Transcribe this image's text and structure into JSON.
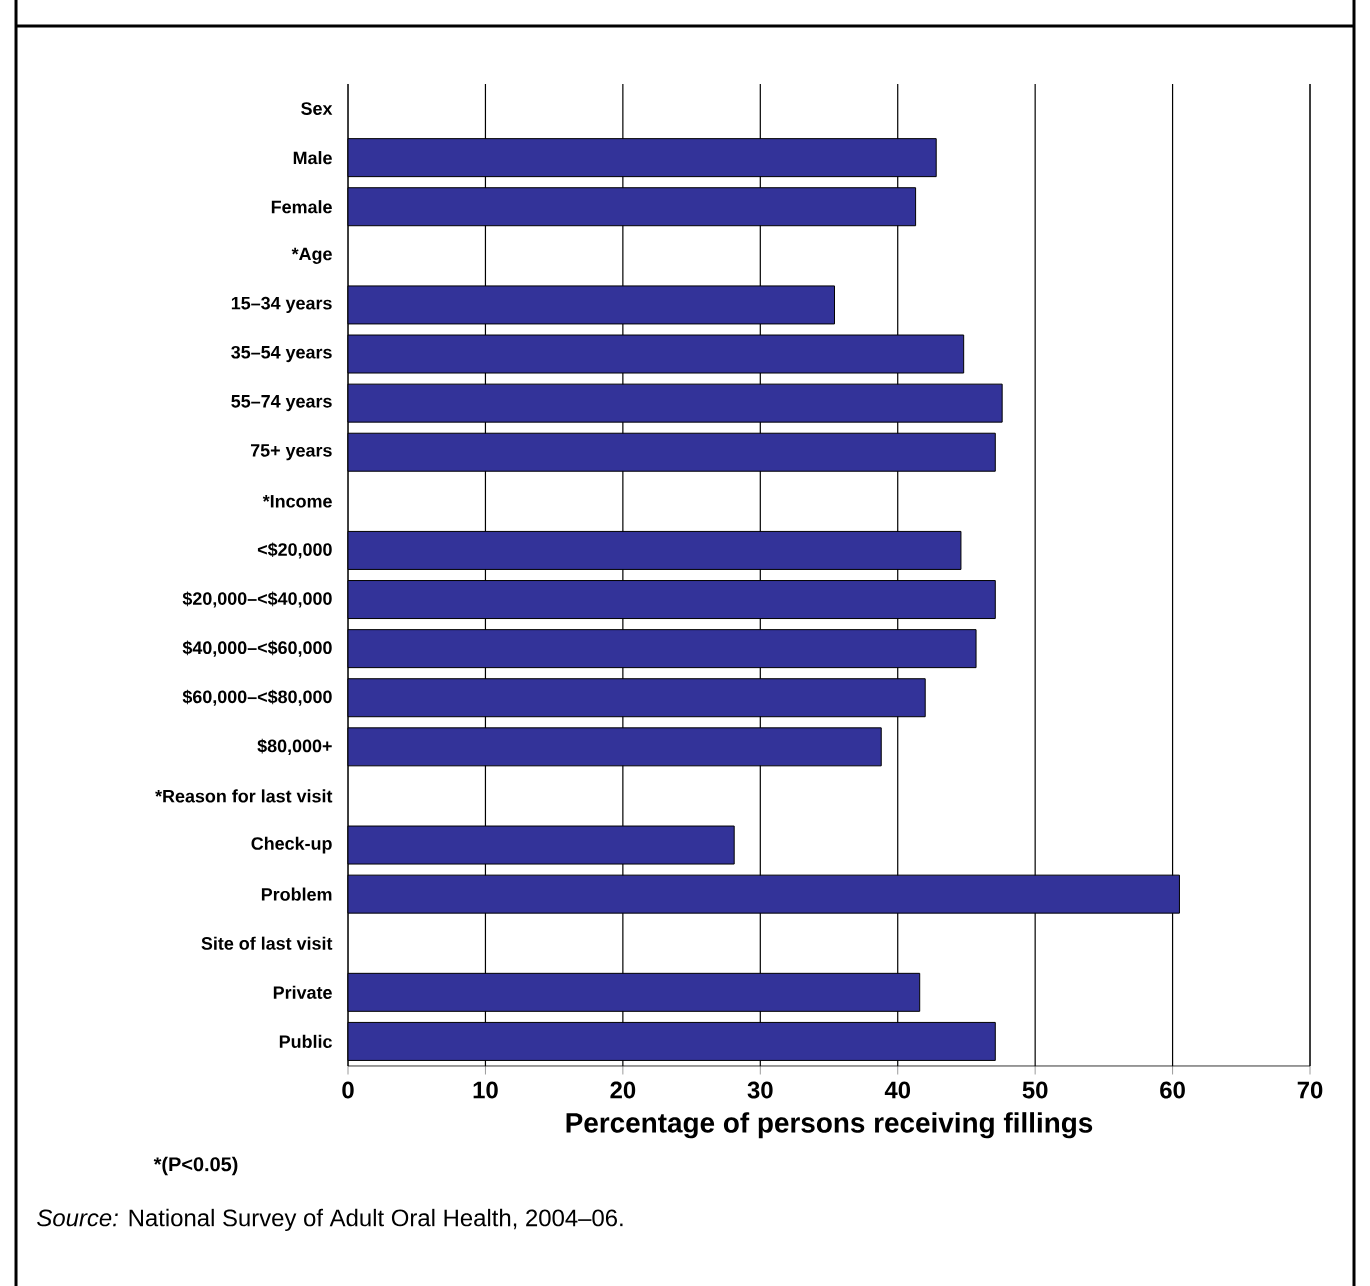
{
  "chart_data": {
    "type": "bar",
    "orientation": "horizontal",
    "xlabel": "Percentage of persons receiving fillings",
    "categories": [
      "Sex",
      "Male",
      "Female",
      "*Age",
      "15–34 years",
      "35–54 years",
      "55–74 years",
      "75+ years",
      "*Income",
      "<$20,000",
      "$20,000–<$40,000",
      "$40,000–<$60,000",
      "$60,000–<$80,000",
      "$80,000+",
      "*Reason for last visit",
      "Check-up",
      "Problem",
      "Site of last visit",
      "Private",
      "Public"
    ],
    "values": [
      null,
      42.8,
      41.3,
      null,
      35.4,
      44.8,
      47.6,
      47.1,
      null,
      44.6,
      47.1,
      45.7,
      42.0,
      38.8,
      null,
      28.1,
      60.5,
      null,
      41.6,
      47.1
    ],
    "color": "#333399",
    "xlim": [
      0,
      70
    ],
    "xticks": [
      0,
      10,
      20,
      30,
      40,
      50,
      60,
      70
    ],
    "grid": "x",
    "annotations": [
      "*(P<0.05)",
      "*Source:* National Survey of Adult Oral Health, 2004–06."
    ]
  }
}
